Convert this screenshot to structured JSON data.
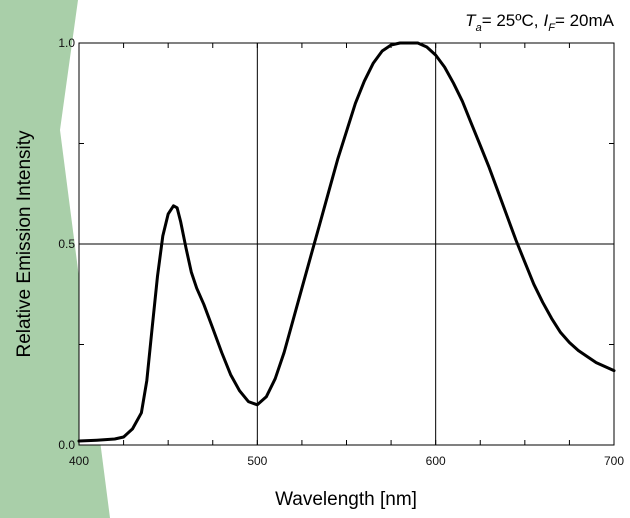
{
  "chart_data": {
    "type": "line",
    "title": "",
    "conditions": {
      "ta_symbol": "T",
      "ta_sub": "a",
      "ta_value": "= 25ºC,",
      "if_symbol": "I",
      "if_sub": "F",
      "if_value": "= 20mA"
    },
    "xlabel": "Wavelength [nm]",
    "ylabel": "Relative Emission Intensity",
    "xlim": [
      400,
      700
    ],
    "ylim": [
      0,
      1.0
    ],
    "x_ticks": [
      400,
      500,
      600,
      700
    ],
    "x_tick_labels": [
      "400",
      "500",
      "600",
      "700"
    ],
    "y_ticks": [
      0,
      0.5,
      1.0
    ],
    "y_tick_labels": [
      "0.0",
      "0.5",
      "1.0"
    ],
    "x_minor_step": 25,
    "y_minor_step": 0.25,
    "grid": true,
    "line_color": "#000000",
    "background_accent": "#a9cfa9",
    "series": [
      {
        "x": [
          400,
          410,
          420,
          425,
          430,
          435,
          438,
          441,
          444,
          447,
          450,
          453,
          455,
          457,
          460,
          463,
          466,
          470,
          475,
          480,
          485,
          490,
          495,
          500,
          505,
          510,
          515,
          520,
          525,
          530,
          535,
          540,
          545,
          550,
          555,
          560,
          565,
          570,
          575,
          580,
          585,
          590,
          595,
          600,
          605,
          610,
          615,
          620,
          625,
          630,
          635,
          640,
          645,
          650,
          655,
          660,
          665,
          670,
          675,
          680,
          685,
          690,
          695,
          700
        ],
        "values": [
          0.01,
          0.012,
          0.015,
          0.02,
          0.04,
          0.08,
          0.16,
          0.29,
          0.42,
          0.52,
          0.575,
          0.595,
          0.59,
          0.555,
          0.49,
          0.43,
          0.39,
          0.35,
          0.29,
          0.23,
          0.175,
          0.135,
          0.108,
          0.1,
          0.12,
          0.165,
          0.23,
          0.31,
          0.39,
          0.47,
          0.55,
          0.63,
          0.71,
          0.78,
          0.85,
          0.905,
          0.95,
          0.98,
          0.995,
          1.0,
          1.0,
          1.0,
          0.99,
          0.97,
          0.94,
          0.9,
          0.855,
          0.8,
          0.745,
          0.69,
          0.63,
          0.57,
          0.51,
          0.455,
          0.4,
          0.355,
          0.315,
          0.28,
          0.255,
          0.235,
          0.22,
          0.205,
          0.195,
          0.185
        ]
      }
    ]
  }
}
